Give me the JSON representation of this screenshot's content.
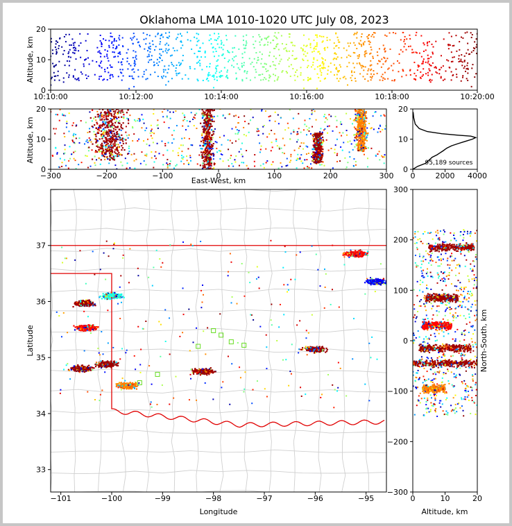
{
  "title": "Oklahoma LMA 1010-1020 UTC July 08, 2023",
  "chart_data": [
    {
      "panel": "time-altitude",
      "type": "scatter",
      "ylabel": "Altitude, km",
      "xlabel": "",
      "ylim": [
        0,
        20
      ],
      "xlim": [
        "10:10:00",
        "10:20:00"
      ],
      "xticks": [
        "10:10:00",
        "10:12:00",
        "10:14:00",
        "10:16:00",
        "10:18:00",
        "10:20:00"
      ],
      "yticks": [
        "0",
        "10",
        "20"
      ],
      "color_by": "time (jet colormap, blue to dark red)",
      "altitude_band_km": [
        3,
        18
      ]
    },
    {
      "panel": "east-west-altitude",
      "type": "scatter",
      "xlabel": "East-West, km",
      "ylabel": "Altitude, km",
      "xlim": [
        -300,
        300
      ],
      "ylim": [
        0,
        20
      ],
      "xticks": [
        "−300",
        "−200",
        "−100",
        "0",
        "100",
        "200",
        "300"
      ],
      "yticks": [
        "0",
        "10",
        "20"
      ],
      "clusters": [
        {
          "x_center": -195,
          "x_halfwidth": 40,
          "alt_range": [
            3,
            20
          ],
          "color": "dark red"
        },
        {
          "x_center": -20,
          "x_halfwidth": 15,
          "alt_range": [
            0,
            20
          ],
          "color": "dark red"
        },
        {
          "x_center": 178,
          "x_halfwidth": 12,
          "alt_range": [
            2,
            12
          ],
          "color": "dark red"
        },
        {
          "x_center": 255,
          "x_halfwidth": 14,
          "alt_range": [
            6,
            20
          ],
          "color": "orange"
        }
      ]
    },
    {
      "panel": "altitude-histogram",
      "type": "line",
      "xlim": [
        0,
        4000
      ],
      "ylim": [
        0,
        20
      ],
      "xticks": [
        "0",
        "2000",
        "4000"
      ],
      "yticks": [
        "0",
        "10",
        "20"
      ],
      "annotation": "95,189 sources",
      "x": [
        0,
        300,
        800,
        900,
        1000,
        1200,
        1500,
        1700,
        1900,
        2100,
        2400,
        2800,
        3100,
        3400,
        3700,
        3900,
        3600,
        2800,
        1800,
        900,
        400,
        150,
        60,
        20
      ],
      "y": [
        0,
        1,
        2,
        2.6,
        3,
        4,
        4.8,
        5.5,
        6.2,
        7,
        7.8,
        8.5,
        9,
        9.5,
        10,
        10.5,
        11,
        11.3,
        11.8,
        12.5,
        13.5,
        15,
        17,
        19
      ]
    },
    {
      "panel": "map",
      "type": "scatter",
      "xlabel": "Longitude",
      "ylabel": "Latitude",
      "xlim": [
        -101.2,
        -94.6
      ],
      "ylim": [
        32.6,
        38
      ],
      "xticks": [
        "−101",
        "−100",
        "−99",
        "−98",
        "−97",
        "−96",
        "−95"
      ],
      "yticks": [
        "33",
        "34",
        "35",
        "36",
        "37"
      ],
      "clusters": [
        {
          "lon": -100.1,
          "lat": 34.88,
          "color": "dark red"
        },
        {
          "lon": -100.6,
          "lat": 34.8,
          "color": "dark red"
        },
        {
          "lon": -99.7,
          "lat": 34.5,
          "color": "orange"
        },
        {
          "lon": -98.2,
          "lat": 34.75,
          "color": "dark red"
        },
        {
          "lon": -96.0,
          "lat": 35.15,
          "color": "dark red"
        },
        {
          "lon": -95.2,
          "lat": 36.85,
          "color": "red"
        },
        {
          "lon": -100.5,
          "lat": 35.53,
          "color": "red"
        },
        {
          "lon": -100.55,
          "lat": 35.97,
          "color": "dark red"
        },
        {
          "lon": -100.0,
          "lat": 36.1,
          "color": "cyan"
        },
        {
          "lon": -94.8,
          "lat": 36.35,
          "color": "blue"
        }
      ]
    },
    {
      "panel": "altitude-north-south",
      "type": "scatter",
      "xlabel": "Altitude, km",
      "ylabel": "North-South, km",
      "xlim": [
        0,
        20
      ],
      "ylim": [
        -300,
        300
      ],
      "xticks": [
        "0",
        "10",
        "20"
      ],
      "yticks": [
        "−300",
        "−200",
        "−100",
        "0",
        "100",
        "200",
        "300"
      ],
      "clusters": [
        {
          "y_center": 185,
          "alt_range": [
            5,
            19
          ],
          "color": "dark red"
        },
        {
          "y_center": 85,
          "alt_range": [
            4,
            14
          ],
          "color": "dark red"
        },
        {
          "y_center": 30,
          "alt_range": [
            3,
            12
          ],
          "color": "red"
        },
        {
          "y_center": -15,
          "alt_range": [
            2,
            18
          ],
          "color": "dark red"
        },
        {
          "y_center": -45,
          "alt_range": [
            0,
            20
          ],
          "color": "dark red"
        },
        {
          "y_center": -95,
          "alt_range": [
            3,
            10
          ],
          "color": "orange"
        }
      ]
    }
  ]
}
